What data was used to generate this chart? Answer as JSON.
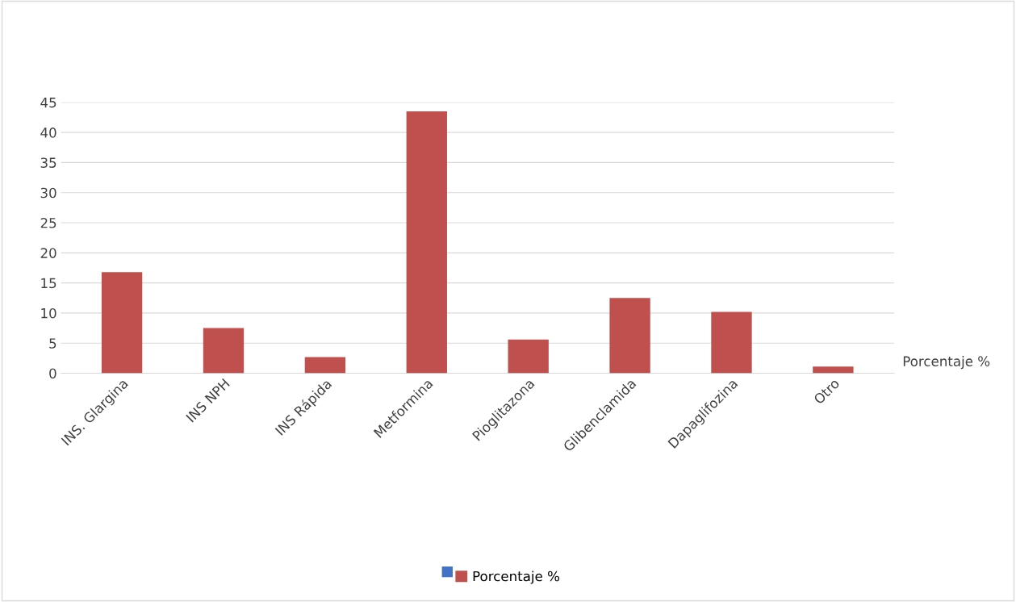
{
  "chart_data": {
    "type": "bar",
    "categories": [
      "INS. Glargina",
      "INS NPH",
      "INS Rápida",
      "Metformina",
      "Pioglitazona",
      "Glibenclamida",
      "Dapaglifozina",
      "Otro"
    ],
    "series": [
      {
        "name": "Porcentaje %",
        "color": "#c0504d",
        "values": [
          16.8,
          7.5,
          2.7,
          43.5,
          5.6,
          12.5,
          10.2,
          1.1
        ]
      }
    ],
    "ylim": [
      0,
      45
    ],
    "yticks": [
      0,
      5,
      10,
      15,
      20,
      25,
      30,
      35,
      40,
      45
    ],
    "grid": "y",
    "legend": "bottom",
    "annotations": [
      "Porcentaje %"
    ]
  }
}
